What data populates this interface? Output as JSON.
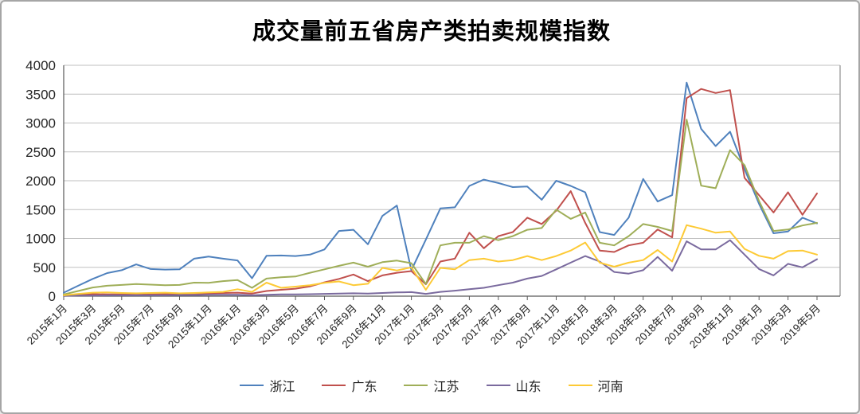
{
  "window": {
    "background_color": "#ffffff",
    "border_color": "#a6a6a6"
  },
  "colors": {
    "gridline": "#bfbfbf",
    "axis": "#595959",
    "plot_right_border": "#a6a6a6",
    "text": "#262626"
  },
  "chart_data": {
    "type": "line",
    "title": "成交量前五省房产类拍卖规模指数",
    "xlabel": "",
    "ylabel": "",
    "ylim": [
      0,
      4000
    ],
    "y_ticks": [
      0,
      500,
      1000,
      1500,
      2000,
      2500,
      3000,
      3500,
      4000
    ],
    "grid": true,
    "legend_position": "bottom",
    "x_is_monthly": "2015-01 to 2019-05, one point per month, axis labels every 2 months",
    "x_tick_labels": [
      "2015年1月",
      "2015年3月",
      "2015年5月",
      "2015年7月",
      "2015年9月",
      "2015年11月",
      "2016年1月",
      "2016年3月",
      "2016年5月",
      "2016年7月",
      "2016年9月",
      "2016年11月",
      "2017年1月",
      "2017年3月",
      "2017年5月",
      "2017年7月",
      "2017年9月",
      "2017年11月",
      "2018年1月",
      "2018年3月",
      "2018年5月",
      "2018年7月",
      "2018年9月",
      "2018年11月",
      "2019年1月",
      "2019年3月",
      "2019年5月"
    ],
    "series": [
      {
        "name": "浙江",
        "id": "zhejiang",
        "color": "#4F81BD",
        "values": [
          60,
          180,
          300,
          400,
          450,
          550,
          470,
          460,
          465,
          650,
          685,
          650,
          620,
          310,
          700,
          705,
          695,
          720,
          810,
          1130,
          1150,
          900,
          1390,
          1570,
          450,
          980,
          1520,
          1540,
          1910,
          2020,
          1960,
          1890,
          1900,
          1670,
          2000,
          1910,
          1800,
          1110,
          1060,
          1360,
          2030,
          1640,
          1750,
          3700,
          2900,
          2600,
          2850,
          2200,
          1600,
          1090,
          1120,
          1360,
          1260
        ]
      },
      {
        "name": "广东",
        "id": "guangdong",
        "color": "#C0504D",
        "values": [
          20,
          30,
          35,
          30,
          30,
          25,
          30,
          35,
          40,
          45,
          50,
          55,
          60,
          45,
          90,
          110,
          130,
          170,
          240,
          300,
          375,
          260,
          360,
          405,
          435,
          205,
          600,
          650,
          1100,
          830,
          1040,
          1110,
          1360,
          1250,
          1480,
          1820,
          1270,
          790,
          765,
          880,
          925,
          1155,
          1020,
          3430,
          3590,
          3520,
          3570,
          2050,
          1750,
          1450,
          1800,
          1410,
          1780
        ]
      },
      {
        "name": "江苏",
        "id": "jiangsu",
        "color": "#9FAE58",
        "values": [
          30,
          90,
          150,
          180,
          195,
          210,
          200,
          190,
          195,
          235,
          230,
          260,
          280,
          145,
          305,
          327,
          341,
          405,
          465,
          525,
          580,
          511,
          589,
          616,
          571,
          210,
          880,
          925,
          925,
          1040,
          970,
          1040,
          1150,
          1180,
          1500,
          1340,
          1450,
          925,
          880,
          1040,
          1250,
          1200,
          1130,
          3060,
          1915,
          1870,
          2530,
          2270,
          1650,
          1130,
          1155,
          1225,
          1270
        ]
      },
      {
        "name": "山东",
        "id": "shandong",
        "color": "#7A6A9E",
        "values": [
          5,
          10,
          10,
          15,
          15,
          15,
          15,
          15,
          20,
          20,
          25,
          25,
          25,
          15,
          25,
          30,
          30,
          35,
          40,
          45,
          50,
          45,
          55,
          65,
          70,
          40,
          75,
          95,
          120,
          145,
          190,
          235,
          305,
          350,
          465,
          580,
          695,
          600,
          420,
          390,
          450,
          680,
          440,
          950,
          810,
          810,
          970,
          720,
          470,
          360,
          560,
          500,
          640
        ]
      },
      {
        "name": "河南",
        "id": "henan",
        "color": "#FDCA35",
        "values": [
          15,
          40,
          60,
          65,
          55,
          50,
          55,
          60,
          50,
          55,
          65,
          75,
          120,
          75,
          235,
          145,
          165,
          190,
          230,
          255,
          190,
          215,
          490,
          445,
          500,
          110,
          490,
          465,
          625,
          650,
          600,
          625,
          695,
          625,
          695,
          790,
          930,
          580,
          510,
          580,
          625,
          800,
          600,
          1230,
          1170,
          1100,
          1120,
          820,
          700,
          650,
          780,
          790,
          720
        ]
      }
    ]
  }
}
